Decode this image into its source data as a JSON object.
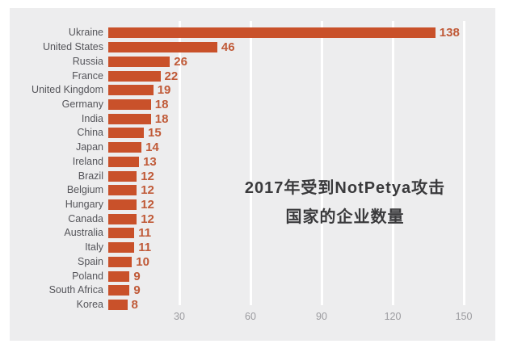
{
  "chart_data": {
    "type": "bar",
    "orientation": "horizontal",
    "title_line1": "2017年受到NotPetya攻击",
    "title_line2": "国家的企业数量",
    "categories": [
      "Ukraine",
      "United States",
      "Russia",
      "France",
      "United Kingdom",
      "Germany",
      "India",
      "China",
      "Japan",
      "Ireland",
      "Brazil",
      "Belgium",
      "Hungary",
      "Canada",
      "Australia",
      "Italy",
      "Spain",
      "Poland",
      "South Africa",
      "Korea"
    ],
    "values": [
      138,
      46,
      26,
      22,
      19,
      18,
      18,
      15,
      14,
      13,
      12,
      12,
      12,
      12,
      11,
      11,
      10,
      9,
      9,
      8
    ],
    "xticks": [
      30,
      60,
      90,
      120,
      150
    ],
    "xlim": [
      0,
      165
    ],
    "grid": "on",
    "legend": "none",
    "colors": {
      "bar": "#c9512a",
      "value_label": "#c05a38",
      "category_label": "#55555a",
      "tick_label": "#9b9b9f",
      "title": "#3a3a3c",
      "panel_bg": "#ededee",
      "page_bg": "#ffffff",
      "gridline": "#ffffff"
    }
  }
}
